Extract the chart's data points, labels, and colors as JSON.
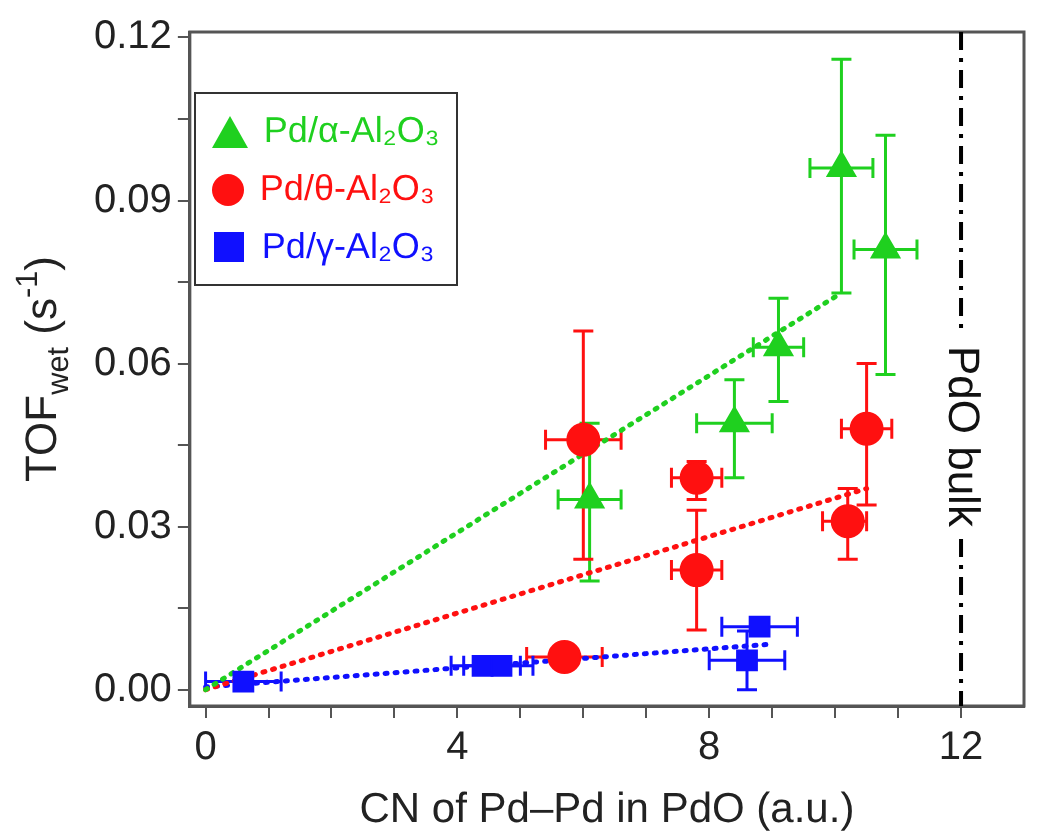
{
  "chart_data": {
    "type": "scatter",
    "xlabel": "CN of Pd–Pd in PdO (a.u.)",
    "ylabel": "TOF$_{wet}$ (s$^{-1}$)",
    "xlim": [
      -0.25,
      13
    ],
    "ylim": [
      -0.003,
      0.121
    ],
    "xticks": [
      0,
      {
        "value": 1,
        "label": null
      },
      {
        "value": 2,
        "label": null
      },
      {
        "value": 3,
        "label": null
      },
      4,
      {
        "value": 5,
        "label": null
      },
      {
        "value": 6,
        "label": null
      },
      {
        "value": 7,
        "label": null
      },
      8,
      {
        "value": 9,
        "label": null
      },
      {
        "value": 10,
        "label": null
      },
      {
        "value": 11,
        "label": null
      },
      12
    ],
    "yticks": [
      {
        "value": 0,
        "label": "0.00"
      },
      {
        "value": 0.015,
        "label": null
      },
      {
        "value": 0.03,
        "label": "0.03"
      },
      {
        "value": 0.045,
        "label": null
      },
      {
        "value": 0.06,
        "label": "0.06"
      },
      {
        "value": 0.075,
        "label": null
      },
      {
        "value": 0.09,
        "label": "0.09"
      },
      {
        "value": 0.105,
        "label": null
      },
      {
        "value": 0.12,
        "label": "0.12"
      }
    ],
    "grid": false,
    "legend": "top left",
    "series": [
      {
        "name": "Pd/α-Al₂O₃",
        "color": "#1fd01f",
        "marker": "triangle",
        "x": [
          6.1,
          8.4,
          9.1,
          10.1,
          10.8
        ],
        "values": [
          0.035,
          0.049,
          0.063,
          0.096,
          0.081
        ],
        "errors": [
          [
            0.02,
            0.049
          ],
          [
            0.039,
            0.057
          ],
          [
            0.053,
            0.072
          ],
          [
            0.073,
            0.116
          ],
          [
            0.058,
            0.102
          ]
        ],
        "xerrors": [
          [
            5.6,
            6.6
          ],
          [
            7.8,
            9.0
          ],
          [
            8.7,
            9.5
          ],
          [
            9.6,
            10.6
          ],
          [
            10.3,
            11.3
          ]
        ]
      },
      {
        "name": "Pd/θ-Al₂O₃",
        "color": "#ff1010",
        "marker": "circle",
        "x": [
          6.0,
          7.8,
          7.8,
          5.7,
          10.2,
          10.5
        ],
        "values": [
          0.046,
          0.039,
          0.022,
          0.006,
          0.031,
          0.048
        ],
        "errors": [
          [
            0.024,
            0.066
          ],
          [
            0.035,
            0.042
          ],
          [
            0.011,
            0.033
          ],
          null,
          [
            0.024,
            0.037
          ],
          [
            0.034,
            0.06
          ]
        ],
        "xerrors": [
          [
            5.4,
            6.6
          ],
          [
            7.4,
            8.2
          ],
          [
            7.4,
            8.2
          ],
          [
            5.1,
            6.3
          ],
          [
            9.8,
            10.5
          ],
          [
            10.1,
            10.9
          ]
        ]
      },
      {
        "name": "Pd/γ-Al₂O₃",
        "color": "#1010ff",
        "marker": "square",
        "x": [
          0.6,
          4.4,
          4.7,
          8.8,
          8.6
        ],
        "values": [
          0.0015,
          0.0044,
          0.0044,
          0.0116,
          0.0054
        ],
        "errors": [
          null,
          null,
          null,
          null,
          [
            0.0,
            0.0108
          ]
        ],
        "xerrors": [
          [
            0.0,
            1.2
          ],
          [
            3.9,
            5.0
          ],
          [
            4.1,
            5.2
          ],
          [
            8.2,
            9.4
          ],
          [
            8.0,
            9.2
          ]
        ]
      },
      {
        "type": "line",
        "color": "#1fd01f",
        "marker": "none",
        "line_style": "dotted",
        "x": [
          0,
          10.1
        ],
        "values": [
          0,
          0.073
        ]
      },
      {
        "type": "line",
        "color": "#ff1010",
        "marker": "none",
        "line_style": "dotted",
        "x": [
          0,
          10.5
        ],
        "values": [
          0,
          0.037
        ]
      },
      {
        "type": "line",
        "color": "#1010ff",
        "marker": "none",
        "line_style": "dotted",
        "x": [
          0,
          8.9
        ],
        "values": [
          0.0005,
          0.0083
        ]
      }
    ],
    "ref_lines": [
      {
        "axis": "x",
        "value": 12,
        "label": "PdO bulk",
        "line_style": "dashdot",
        "color": "#000000"
      }
    ]
  }
}
